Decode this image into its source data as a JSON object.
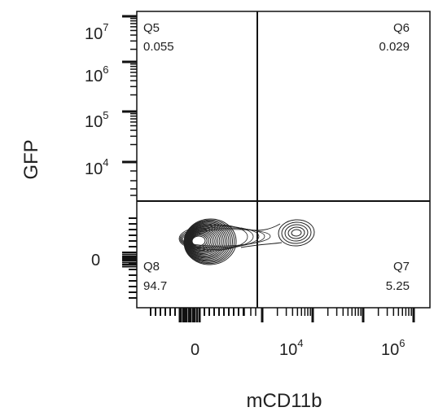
{
  "chart_data": {
    "type": "contour",
    "title": "",
    "xlabel": "mCD11b",
    "ylabel": "GFP",
    "x_scale": "biexponential",
    "y_scale": "biexponential",
    "x_ticks": [
      {
        "base": "0",
        "exp": ""
      },
      {
        "base": "10",
        "exp": "4"
      },
      {
        "base": "10",
        "exp": "6"
      }
    ],
    "y_ticks": [
      {
        "base": "10",
        "exp": "7"
      },
      {
        "base": "10",
        "exp": "6"
      },
      {
        "base": "10",
        "exp": "5"
      },
      {
        "base": "10",
        "exp": "4"
      },
      {
        "base": "0",
        "exp": ""
      }
    ],
    "quadrants": [
      {
        "name": "Q5",
        "value": "0.055",
        "position": "top-left"
      },
      {
        "name": "Q6",
        "value": "0.029",
        "position": "top-right"
      },
      {
        "name": "Q7",
        "value": "5.25",
        "position": "bottom-right"
      },
      {
        "name": "Q8",
        "value": "94.7",
        "position": "bottom-left"
      }
    ],
    "populations": [
      {
        "location": "bottom-left",
        "density": "high",
        "percent": 94.7
      },
      {
        "location": "bottom-right",
        "density": "low",
        "percent": 5.25
      }
    ],
    "grid": false
  }
}
